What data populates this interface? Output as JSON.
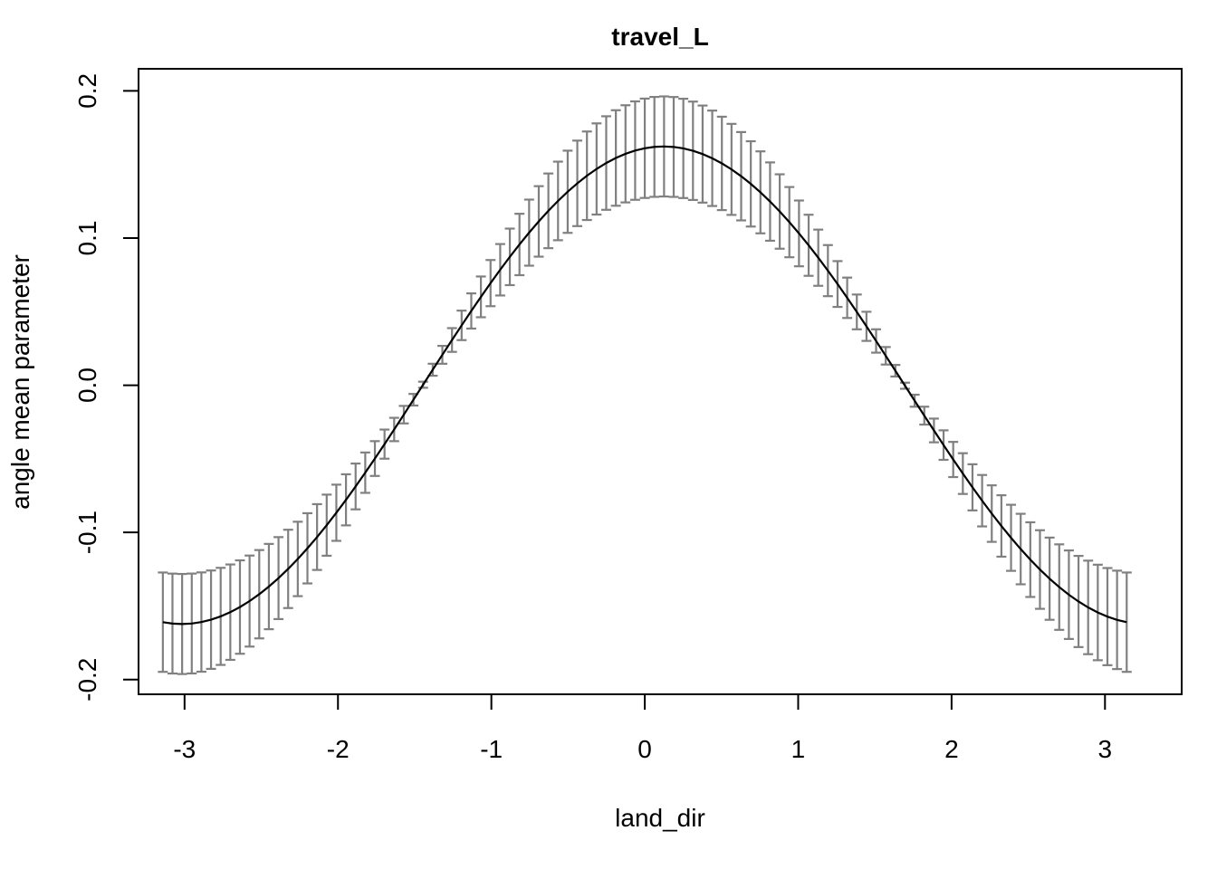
{
  "chart_data": {
    "type": "line",
    "title": "travel_L",
    "xlabel": "land_dir",
    "ylabel": "angle mean parameter",
    "xlim": [
      -3.3,
      3.5
    ],
    "ylim": [
      -0.21,
      0.215
    ],
    "x_ticks": [
      -3,
      -2,
      -1,
      0,
      1,
      2,
      3
    ],
    "x_tick_labels": [
      "-3",
      "-2",
      "-1",
      "0",
      "1",
      "2",
      "3"
    ],
    "y_ticks": [
      -0.2,
      -0.1,
      0.0,
      0.1,
      0.2
    ],
    "y_tick_labels": [
      "-0.2",
      "-0.1",
      "0.0",
      "0.1",
      "0.2"
    ],
    "grid": false,
    "legend": "none",
    "colors": {
      "line": "#000000",
      "error_bars": "#808080"
    },
    "x_range": [
      -3.14159,
      3.14159
    ],
    "n_points": 101,
    "curve_model": {
      "form": "a*sin(x) + b*cos(x)",
      "a": 0.02,
      "b": 0.161
    },
    "error_half_width": {
      "max": 0.034,
      "min": 0.002,
      "shape": "grows with |curve value|"
    },
    "series": [
      {
        "role": "estimate",
        "style": "solid-line"
      },
      {
        "role": "confidence-interval",
        "style": "error-bars"
      }
    ]
  }
}
